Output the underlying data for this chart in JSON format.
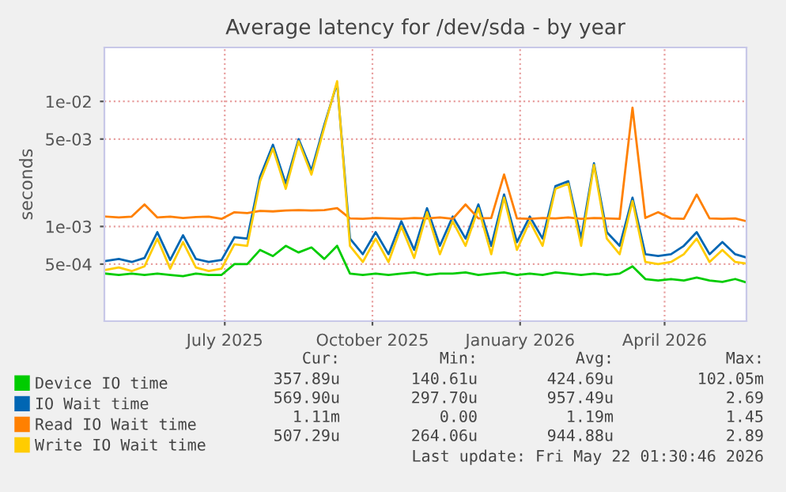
{
  "chart_data": {
    "type": "line",
    "title": "Average latency for /dev/sda - by year",
    "ylabel": "seconds",
    "log": "y",
    "x": [
      "2025-04-18",
      "2025-04-26",
      "2025-05-04",
      "2025-05-12",
      "2025-05-20",
      "2025-05-28",
      "2025-06-05",
      "2025-06-13",
      "2025-06-21",
      "2025-06-29",
      "2025-07-07",
      "2025-07-15",
      "2025-07-23",
      "2025-07-31",
      "2025-08-08",
      "2025-08-16",
      "2025-08-24",
      "2025-09-01",
      "2025-09-09",
      "2025-09-17",
      "2025-09-25",
      "2025-10-03",
      "2025-10-11",
      "2025-10-19",
      "2025-10-27",
      "2025-11-04",
      "2025-11-12",
      "2025-11-20",
      "2025-11-28",
      "2025-12-06",
      "2025-12-14",
      "2025-12-22",
      "2025-12-30",
      "2026-01-07",
      "2026-01-15",
      "2026-01-23",
      "2026-01-31",
      "2026-02-08",
      "2026-02-16",
      "2026-02-24",
      "2026-03-04",
      "2026-03-12",
      "2026-03-20",
      "2026-03-28",
      "2026-04-05",
      "2026-04-13",
      "2026-04-21",
      "2026-04-29",
      "2026-05-07",
      "2026-05-15",
      "2026-05-21"
    ],
    "series": [
      {
        "name": "Device IO time",
        "color": "#00cc00",
        "values": [
          0.00042,
          0.00041,
          0.00042,
          0.00041,
          0.00042,
          0.00041,
          0.0004,
          0.00042,
          0.00041,
          0.00041,
          0.0005,
          0.0005,
          0.00065,
          0.00058,
          0.0007,
          0.00062,
          0.00068,
          0.00055,
          0.0007,
          0.00042,
          0.00041,
          0.00042,
          0.00041,
          0.00042,
          0.00043,
          0.00041,
          0.00042,
          0.00042,
          0.00043,
          0.00041,
          0.00042,
          0.00043,
          0.00041,
          0.00042,
          0.00041,
          0.00043,
          0.00042,
          0.00041,
          0.00042,
          0.00041,
          0.00042,
          0.00048,
          0.00038,
          0.00037,
          0.00038,
          0.00037,
          0.00039,
          0.00037,
          0.00036,
          0.00038,
          0.00036
        ]
      },
      {
        "name": "IO Wait time",
        "color": "#0066b3",
        "values": [
          0.00053,
          0.00055,
          0.00052,
          0.00056,
          0.0009,
          0.00054,
          0.00085,
          0.00055,
          0.00052,
          0.00054,
          0.00082,
          0.0008,
          0.0025,
          0.0045,
          0.0022,
          0.005,
          0.0028,
          0.0065,
          0.014,
          0.0008,
          0.0006,
          0.0009,
          0.0006,
          0.0011,
          0.00065,
          0.0014,
          0.0007,
          0.0012,
          0.0008,
          0.0015,
          0.0007,
          0.0018,
          0.00075,
          0.0012,
          0.0008,
          0.0021,
          0.0023,
          0.0008,
          0.0032,
          0.0009,
          0.0007,
          0.0017,
          0.0006,
          0.00058,
          0.0006,
          0.0007,
          0.0009,
          0.0006,
          0.00075,
          0.0006,
          0.00057
        ]
      },
      {
        "name": "Read IO Wait time",
        "color": "#ff8000",
        "values": [
          0.0012,
          0.00118,
          0.0012,
          0.0015,
          0.00118,
          0.0012,
          0.00117,
          0.00119,
          0.0012,
          0.00115,
          0.0013,
          0.00128,
          0.00133,
          0.00132,
          0.00134,
          0.00135,
          0.00134,
          0.00135,
          0.0014,
          0.00116,
          0.00115,
          0.00117,
          0.00116,
          0.00115,
          0.00117,
          0.00116,
          0.00118,
          0.00115,
          0.0015,
          0.00116,
          0.00117,
          0.0026,
          0.00116,
          0.00115,
          0.00117,
          0.00116,
          0.00118,
          0.00115,
          0.00117,
          0.00116,
          0.00115,
          0.0089,
          0.00117,
          0.0013,
          0.00116,
          0.00115,
          0.0018,
          0.00116,
          0.00115,
          0.00116,
          0.00111
        ]
      },
      {
        "name": "Write IO Wait time",
        "color": "#ffcc00",
        "values": [
          0.00045,
          0.00047,
          0.00044,
          0.00048,
          0.0008,
          0.00046,
          0.00075,
          0.00047,
          0.00044,
          0.00046,
          0.00072,
          0.0007,
          0.0023,
          0.0042,
          0.002,
          0.0048,
          0.0026,
          0.0062,
          0.0145,
          0.0007,
          0.00052,
          0.0008,
          0.00052,
          0.001,
          0.00056,
          0.0013,
          0.0006,
          0.0011,
          0.0007,
          0.0014,
          0.0006,
          0.0017,
          0.00065,
          0.0011,
          0.0007,
          0.002,
          0.0022,
          0.0007,
          0.0031,
          0.0008,
          0.0006,
          0.0016,
          0.00052,
          0.0005,
          0.00052,
          0.0006,
          0.0008,
          0.00052,
          0.00065,
          0.00052,
          0.000507
        ]
      }
    ],
    "ylim": [
      0.000175,
      0.027
    ],
    "yticks": [
      {
        "value": 0.0005,
        "label": "5e-04"
      },
      {
        "value": 0.001,
        "label": "1e-03"
      },
      {
        "value": 0.005,
        "label": "5e-03"
      },
      {
        "value": 0.01,
        "label": "1e-02"
      }
    ],
    "xlim": [
      "2025-04-17",
      "2026-05-22"
    ],
    "xticks": [
      {
        "value": "2025-07-01",
        "label": "July 2025"
      },
      {
        "value": "2025-10-01",
        "label": "October 2025"
      },
      {
        "value": "2026-01-01",
        "label": "January 2026"
      },
      {
        "value": "2026-04-01",
        "label": "April 2026"
      }
    ],
    "grid": true,
    "legend": "bottom",
    "annotations": [
      "Cur:",
      "Min:",
      "Avg:",
      "Max:",
      "357.89u",
      "140.61u",
      "424.69u",
      "102.05m",
      "569.90u",
      "297.70u",
      "957.49u",
      "2.69",
      "1.11m",
      "0.00",
      "1.19m",
      "1.45",
      "507.29u",
      "264.06u",
      "944.88u",
      "2.89",
      "Last update: Fri May 22 01:30:46 2026"
    ]
  }
}
